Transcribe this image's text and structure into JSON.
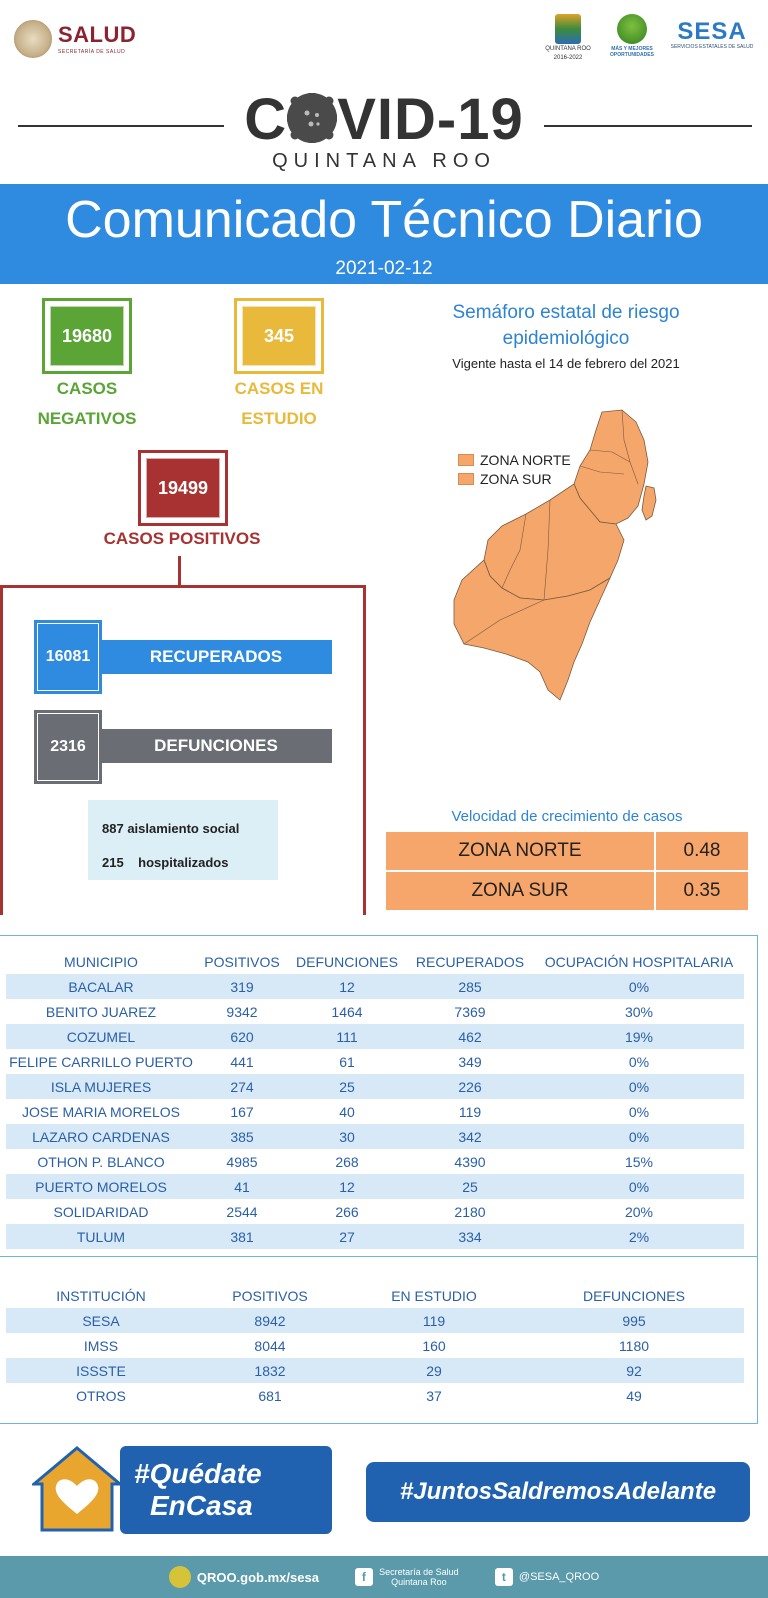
{
  "header": {
    "salud_label": "SALUD",
    "salud_sub": "SECRETARÍA DE SALUD",
    "qroo_logo_text": "QUINTANA ROO",
    "qroo_logo_years": "2016-2022",
    "mas_logo_text": "MÁS Y MEJORES OPORTUNIDADES",
    "sesa_label": "SESA",
    "sesa_sub": "SERVICIOS ESTATALES DE SALUD"
  },
  "title": {
    "covid_pre": "C",
    "covid_post": "VID-19",
    "region": "QUINTANA ROO"
  },
  "banner": {
    "title": "Comunicado Técnico Diario",
    "date": "2021-02-12"
  },
  "stats": {
    "negativos": {
      "value": "19680",
      "label1": "CASOS",
      "label2": "NEGATIVOS",
      "color": "#5aa535"
    },
    "estudio": {
      "value": "345",
      "label1": "CASOS EN",
      "label2": "ESTUDIO",
      "color": "#e8b93a"
    },
    "positivos": {
      "value": "19499",
      "label": "CASOS POSITIVOS",
      "color": "#a83232"
    },
    "recuperados": {
      "value": "16081",
      "label": "RECUPERADOS",
      "color": "#2e8be0"
    },
    "defunciones": {
      "value": "2316",
      "label": "DEFUNCIONES",
      "color": "#6a6e74"
    },
    "aislamiento": {
      "value": "887",
      "label": "aislamiento social"
    },
    "hospitalizados": {
      "value": "215",
      "label": "hospitalizados"
    }
  },
  "semaforo": {
    "title": "Semáforo estatal de riesgo epidemiológico",
    "vigencia": "Vigente hasta el 14 de febrero del 2021",
    "legend": [
      "ZONA NORTE",
      "ZONA SUR"
    ],
    "zone_color": "#f5a66a"
  },
  "velocidad": {
    "title": "Velocidad de crecimiento de casos",
    "rows": [
      {
        "zona": "ZONA NORTE",
        "valor": "0.48"
      },
      {
        "zona": "ZONA SUR",
        "valor": "0.35"
      }
    ]
  },
  "municipios": {
    "headers": [
      "MUNICIPIO",
      "POSITIVOS",
      "DEFUNCIONES",
      "RECUPERADOS",
      "OCUPACIÓN HOSPITALARIA"
    ],
    "rows": [
      [
        "BACALAR",
        "319",
        "12",
        "285",
        "0%"
      ],
      [
        "BENITO JUAREZ",
        "9342",
        "1464",
        "7369",
        "30%"
      ],
      [
        "COZUMEL",
        "620",
        "111",
        "462",
        "19%"
      ],
      [
        "FELIPE CARRILLO PUERTO",
        "441",
        "61",
        "349",
        "0%"
      ],
      [
        "ISLA MUJERES",
        "274",
        "25",
        "226",
        "0%"
      ],
      [
        "JOSE MARIA MORELOS",
        "167",
        "40",
        "119",
        "0%"
      ],
      [
        "LAZARO CARDENAS",
        "385",
        "30",
        "342",
        "0%"
      ],
      [
        "OTHON P. BLANCO",
        "4985",
        "268",
        "4390",
        "15%"
      ],
      [
        "PUERTO MORELOS",
        "41",
        "12",
        "25",
        "0%"
      ],
      [
        "SOLIDARIDAD",
        "2544",
        "266",
        "2180",
        "20%"
      ],
      [
        "TULUM",
        "381",
        "27",
        "334",
        "2%"
      ]
    ]
  },
  "instituciones": {
    "headers": [
      "INSTITUCIÓN",
      "POSITIVOS",
      "EN ESTUDIO",
      "DEFUNCIONES"
    ],
    "rows": [
      [
        "SESA",
        "8942",
        "119",
        "995"
      ],
      [
        "IMSS",
        "8044",
        "160",
        "1180"
      ],
      [
        "ISSSTE",
        "1832",
        "29",
        "92"
      ],
      [
        "OTROS",
        "681",
        "37",
        "49"
      ]
    ]
  },
  "footer": {
    "quedate_line1": "#Quédate",
    "quedate_line2": "EnCasa",
    "juntos": "#JuntosSaldremosAdelante",
    "site": "QROO.gob.mx/sesa",
    "facebook": "Secretaría de Salud Quintana Roo",
    "twitter": "@SESA_QROO"
  }
}
